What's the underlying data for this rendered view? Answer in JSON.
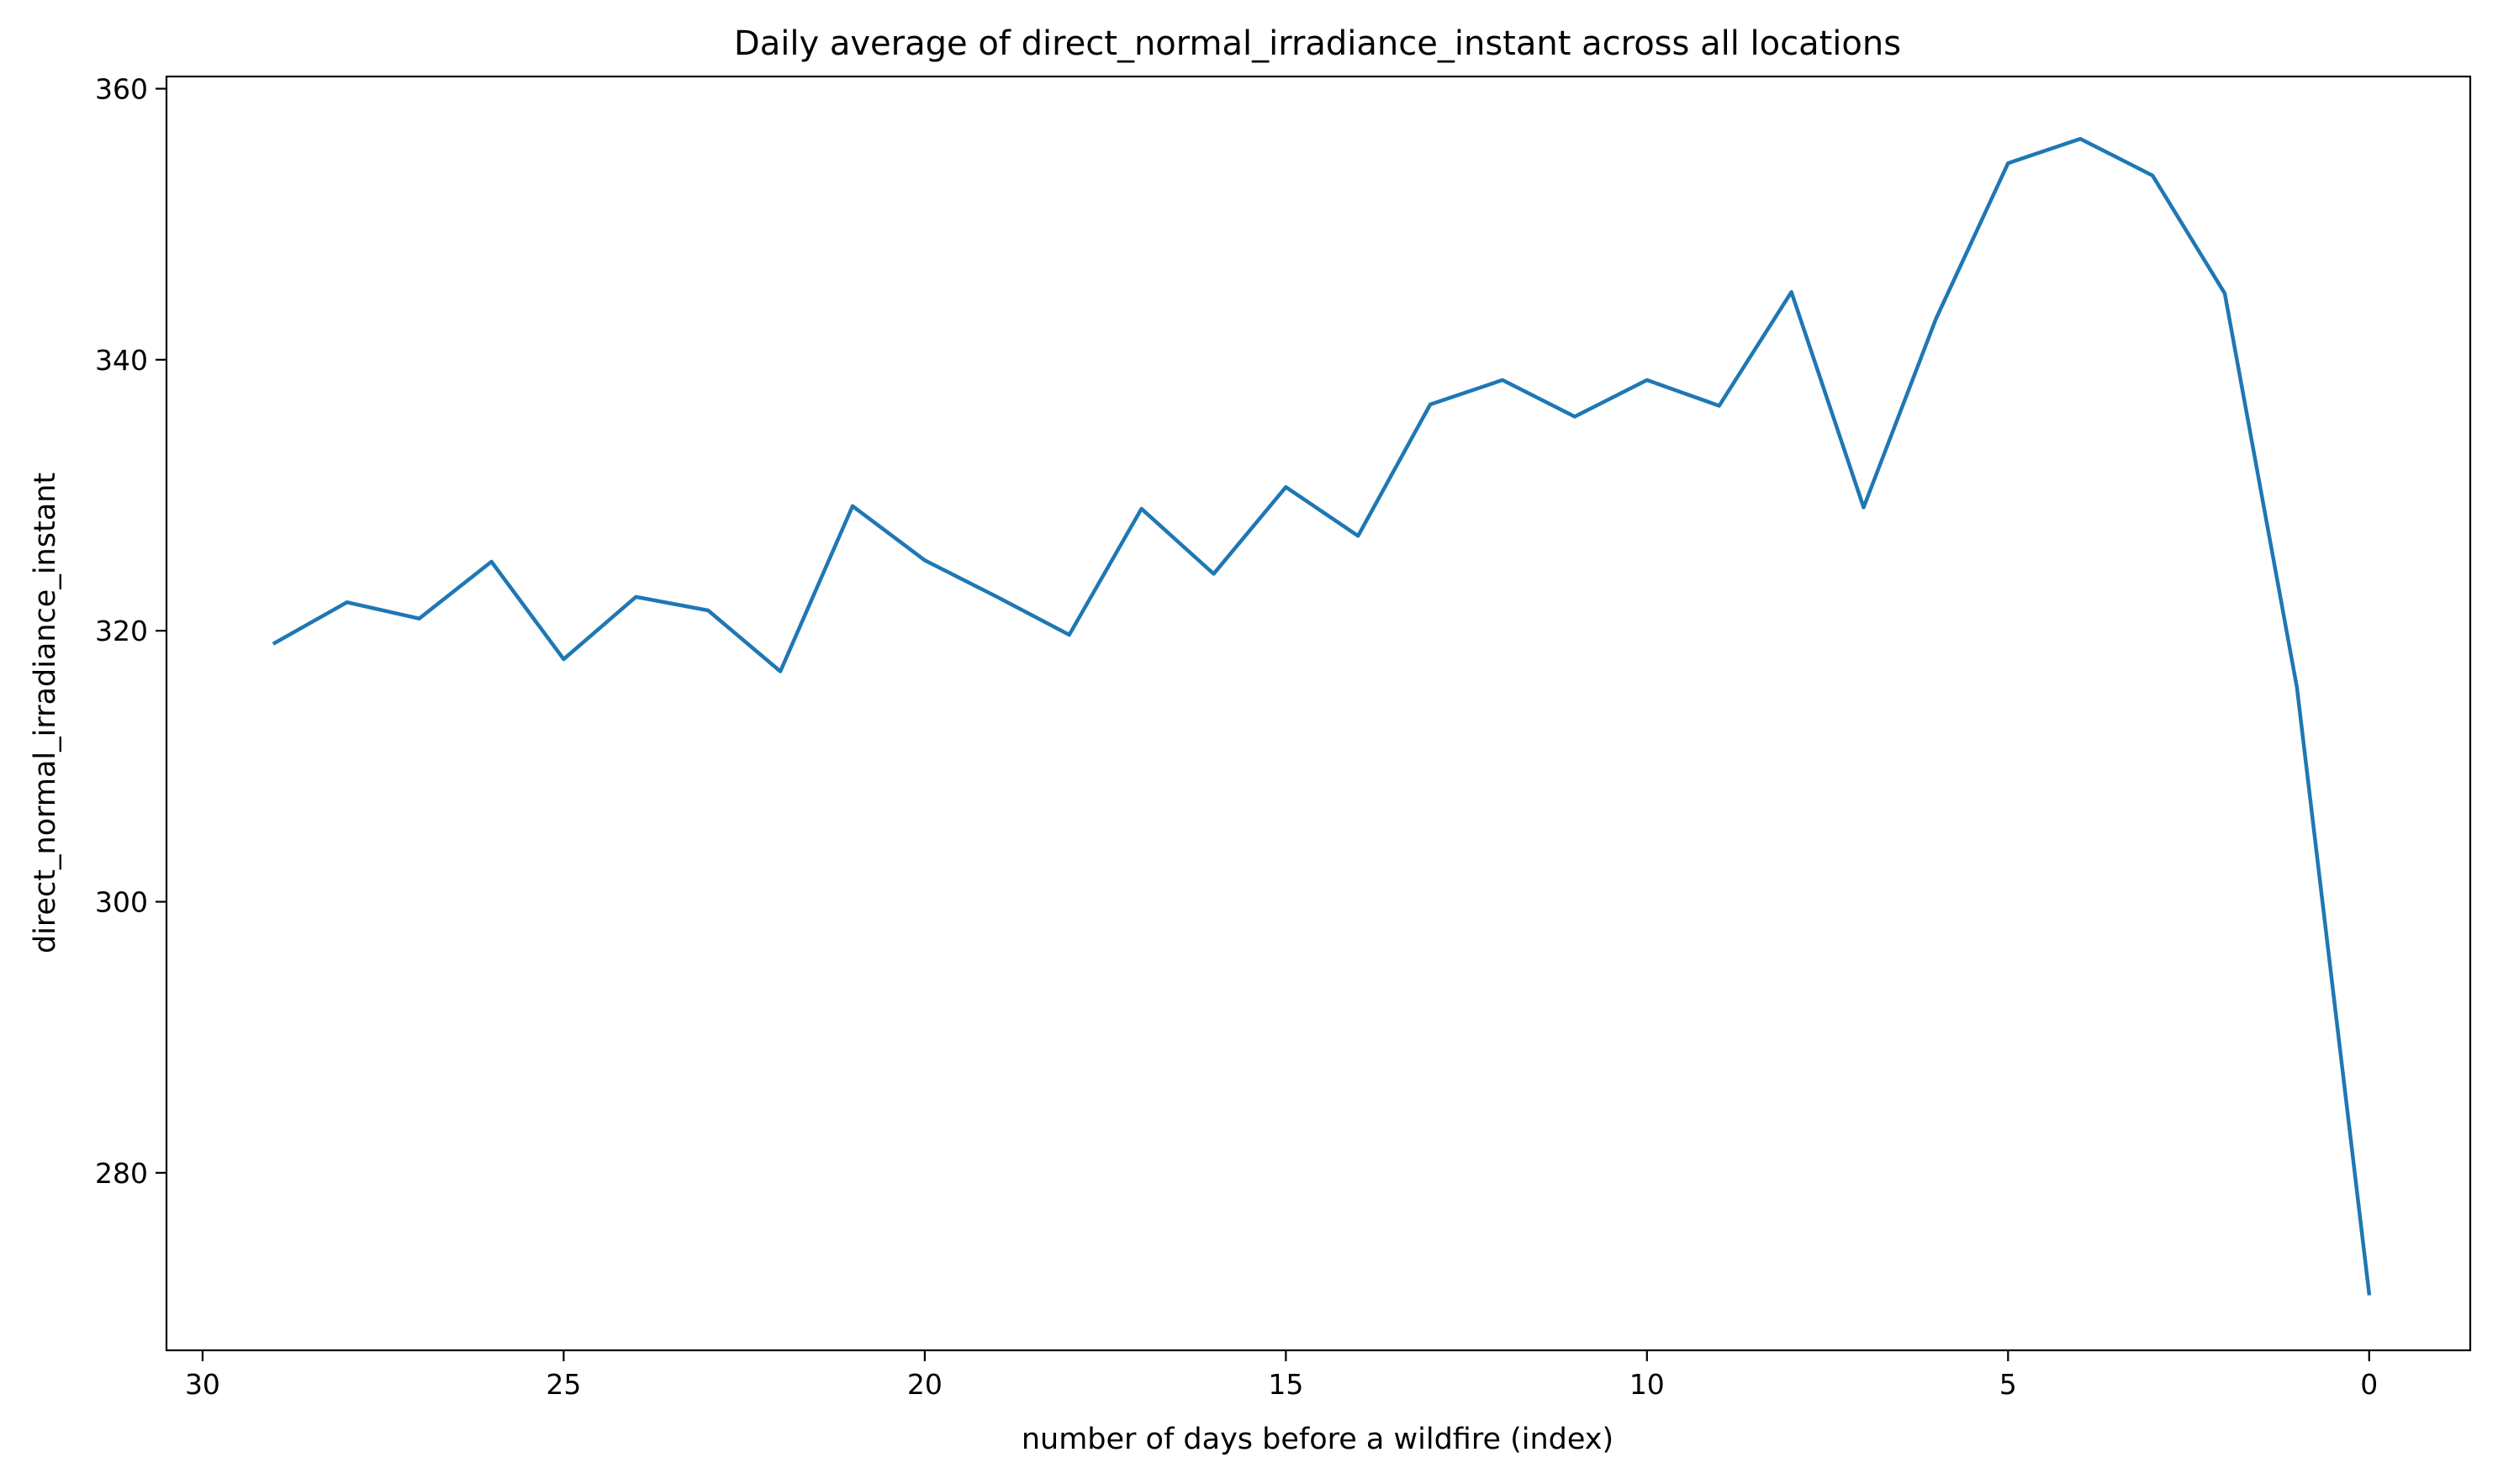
{
  "chart_data": {
    "type": "line",
    "title": "Daily average of direct_normal_irradiance_instant across all locations",
    "xlabel": "number of days before a wildfire (index)",
    "ylabel": "direct_normal_irradiance_instant",
    "xlim": [
      30.5,
      -1.4
    ],
    "ylim": [
      266.9,
      360.9
    ],
    "x_inverted": true,
    "grid": false,
    "legend": "none",
    "x_ticks": [
      30,
      25,
      20,
      15,
      10,
      5,
      0
    ],
    "y_ticks": [
      280,
      300,
      320,
      340,
      360
    ],
    "x": [
      29,
      28,
      27,
      26,
      25,
      24,
      23,
      22,
      21,
      20,
      19,
      18,
      17,
      16,
      15,
      14,
      13,
      12,
      11,
      10,
      9,
      8,
      7,
      6,
      5,
      4,
      3,
      2,
      1,
      0
    ],
    "series": [
      {
        "color": "#1f77b4",
        "values": [
          319.1,
          322.1,
          320.9,
          325.1,
          317.9,
          322.5,
          321.5,
          317.0,
          329.2,
          325.2,
          322.5,
          319.7,
          329.0,
          324.2,
          330.6,
          327.0,
          336.7,
          338.5,
          335.8,
          338.5,
          336.6,
          345.0,
          329.1,
          343.0,
          354.5,
          356.3,
          353.6,
          344.9,
          315.8,
          271.1
        ]
      }
    ]
  }
}
